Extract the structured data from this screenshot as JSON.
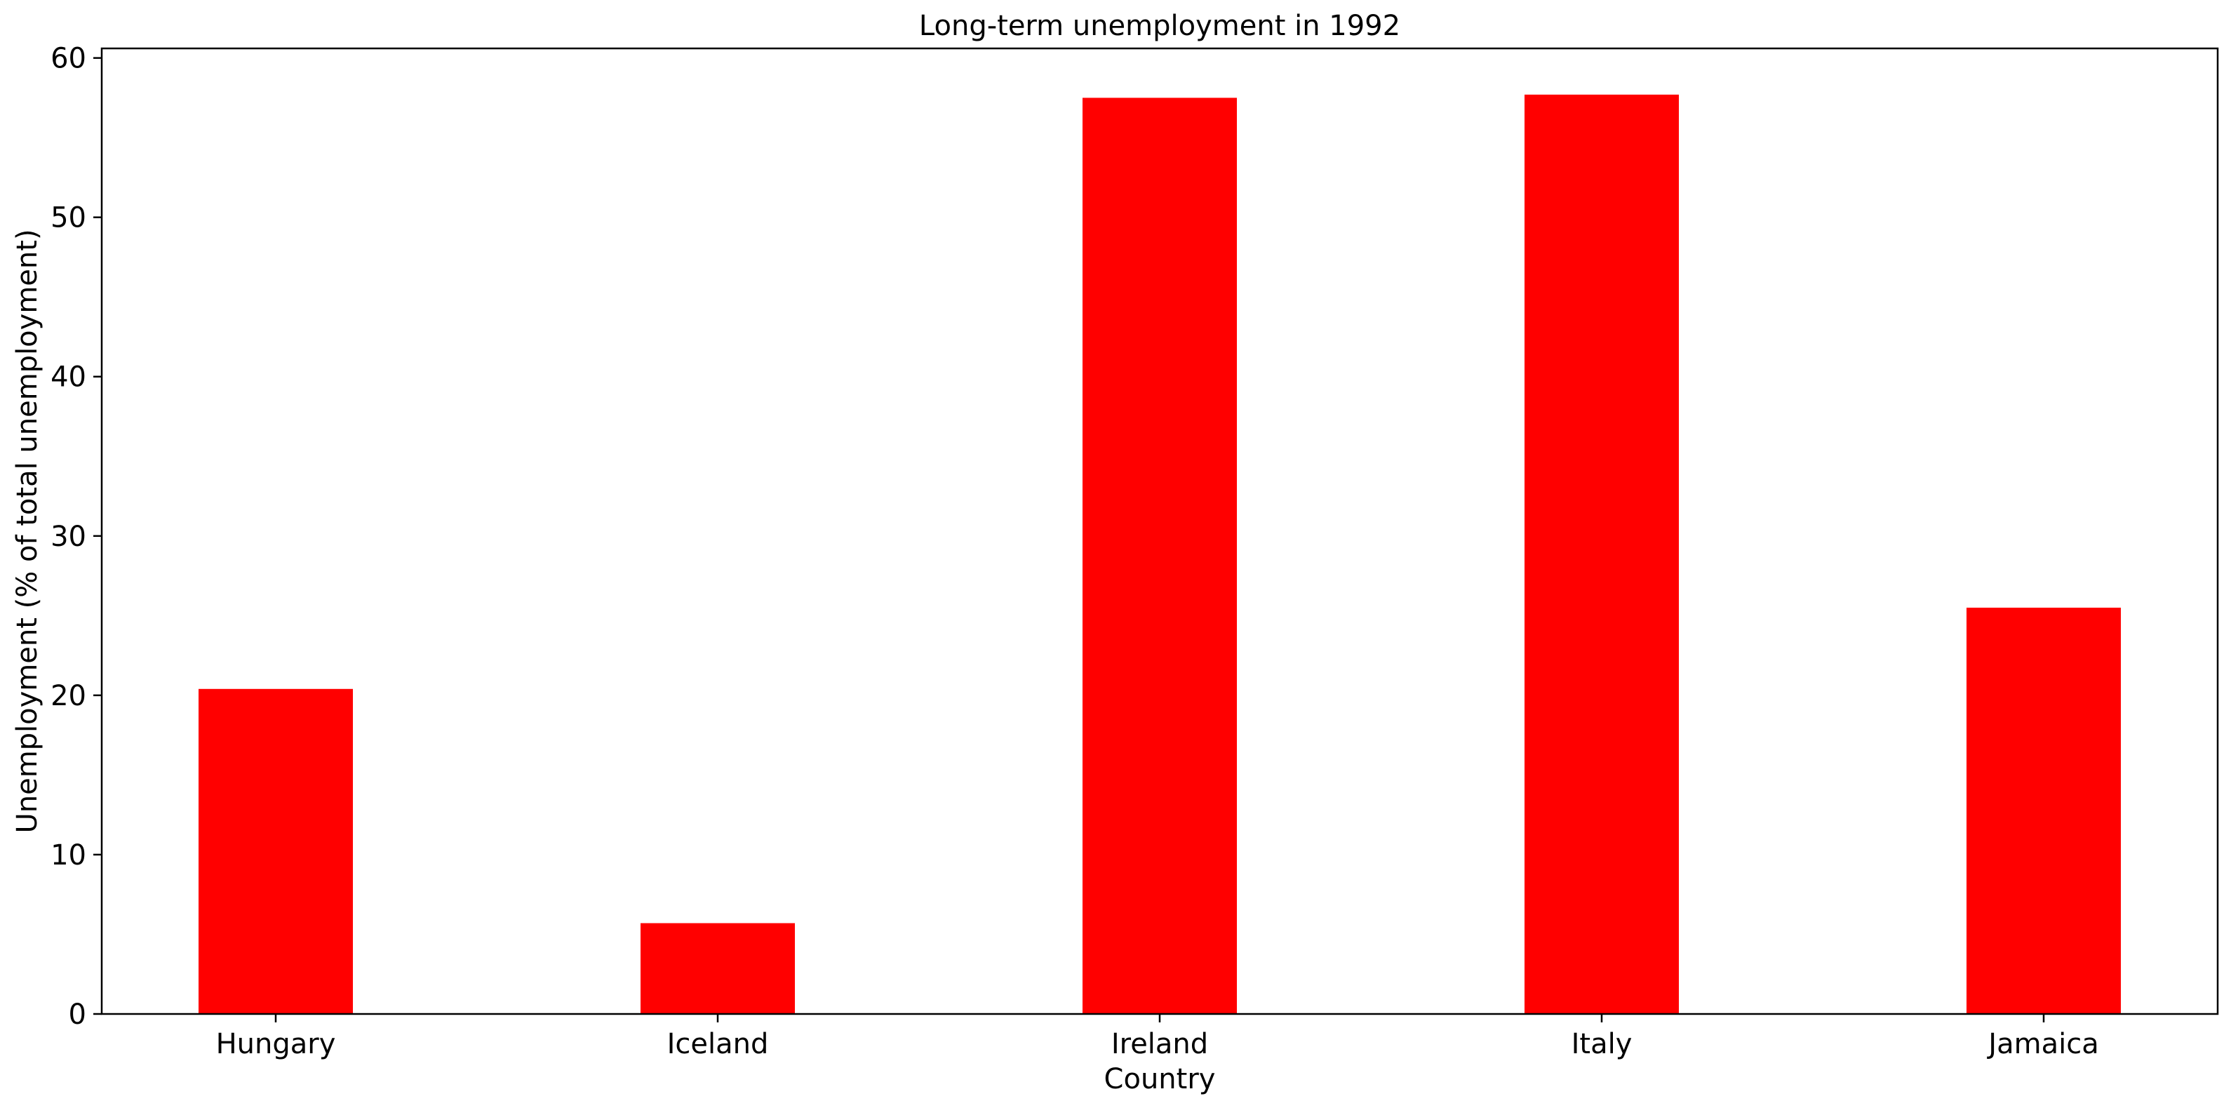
{
  "chart_data": {
    "type": "bar",
    "title": "Long-term unemployment in 1992",
    "xlabel": "Country",
    "ylabel": "Unemployment (% of total unemployment)",
    "categories": [
      "Hungary",
      "Iceland",
      "Ireland",
      "Italy",
      "Jamaica"
    ],
    "values": [
      20.4,
      5.7,
      57.5,
      57.7,
      25.5
    ],
    "ylim": [
      0,
      60
    ],
    "yticks": [
      0,
      10,
      20,
      30,
      40,
      50,
      60
    ],
    "grid": false,
    "legend": "none",
    "bar_color": "#ff0000"
  }
}
